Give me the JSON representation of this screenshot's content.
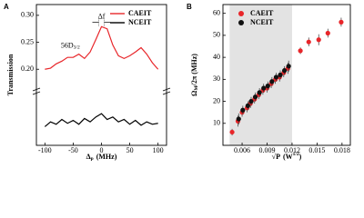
{
  "chart_data": [
    {
      "type": "line",
      "panel_label": "A",
      "xlabel": {
        "symbol": "Δ",
        "sub": "p",
        "unit": "(MHz)"
      },
      "ylabel": "Transmission",
      "x": [
        -100,
        -90,
        -80,
        -70,
        -60,
        -50,
        -40,
        -30,
        -20,
        -10,
        0,
        10,
        20,
        30,
        40,
        50,
        60,
        70,
        80,
        90,
        100
      ],
      "series": [
        {
          "name": "CAEIT",
          "color": "#e8262a",
          "values": [
            0.2,
            0.202,
            0.21,
            0.215,
            0.222,
            0.222,
            0.228,
            0.22,
            0.232,
            0.255,
            0.279,
            0.275,
            0.245,
            0.225,
            0.22,
            0.225,
            0.232,
            0.24,
            0.228,
            0.212,
            0.2
          ]
        },
        {
          "name": "NCEIT",
          "color": "#000000",
          "axis": "y2",
          "values": [
            0.35,
            0.45,
            0.4,
            0.5,
            0.42,
            0.48,
            0.4,
            0.52,
            0.45,
            0.55,
            0.62,
            0.5,
            0.55,
            0.45,
            0.5,
            0.4,
            0.48,
            0.38,
            0.45,
            0.4,
            0.42
          ]
        }
      ],
      "xlim": [
        -115,
        115
      ],
      "xticks": [
        -100,
        -50,
        0,
        50,
        100
      ],
      "ylim": [
        0.165,
        0.32
      ],
      "yticks": [
        {
          "value": 0.2,
          "label": "0.20"
        },
        {
          "value": 0.25,
          "label": "0.25"
        },
        {
          "value": 0.3,
          "label": "0.30"
        }
      ],
      "y2lim": [
        0,
        1
      ],
      "annotations": [
        {
          "main": "56D",
          "sub": "3/2",
          "x": -55,
          "y": 0.243
        },
        {
          "main": "Δf",
          "x": 0,
          "y": 0.297
        }
      ],
      "legend": "upper right"
    },
    {
      "type": "scatter",
      "panel_label": "B",
      "xlabel": {
        "symbol": "√P",
        "unit": "(W",
        "sup": "1/2",
        "close": ")"
      },
      "ylabel": {
        "symbol": "Ω",
        "sub": "M",
        "rest": "/2π (MHz)"
      },
      "x": [
        0.0048,
        0.0055,
        0.006,
        0.0066,
        0.007,
        0.0075,
        0.008,
        0.0085,
        0.009,
        0.0095,
        0.01,
        0.0105,
        0.011,
        0.0115,
        0.013,
        0.014,
        0.0152,
        0.0163,
        0.0179
      ],
      "series": [
        {
          "name": "CAEIT",
          "color": "#e8262a",
          "values": [
            6,
            11,
            15,
            17,
            19,
            21,
            23,
            25,
            26,
            28,
            30,
            31,
            33,
            35,
            43,
            47,
            48,
            51,
            56
          ],
          "errors": [
            1.5,
            2.5,
            2,
            2,
            2,
            2,
            2,
            2,
            2,
            2,
            2,
            2,
            2,
            2.5,
            1.5,
            2,
            2.5,
            2,
            2
          ]
        },
        {
          "name": "NCEIT",
          "color": "#111111",
          "values": [
            null,
            12,
            16,
            18,
            20,
            22,
            24,
            26,
            27,
            29,
            31,
            32,
            34,
            36,
            null,
            null,
            null,
            null,
            null
          ],
          "errors": [
            null,
            2.5,
            2,
            2,
            2,
            2,
            2,
            2,
            2,
            2,
            2,
            2,
            2,
            2.5,
            null,
            null,
            null,
            null,
            null
          ]
        }
      ],
      "xlim": [
        0.0037,
        0.019
      ],
      "xticks": [
        0.006,
        0.009,
        0.012,
        0.015,
        0.018
      ],
      "ylim": [
        0,
        64
      ],
      "yticks": [
        10,
        20,
        30,
        40,
        50,
        60
      ],
      "shaded_region": [
        0.0045,
        0.012
      ],
      "legend": "upper left"
    }
  ]
}
